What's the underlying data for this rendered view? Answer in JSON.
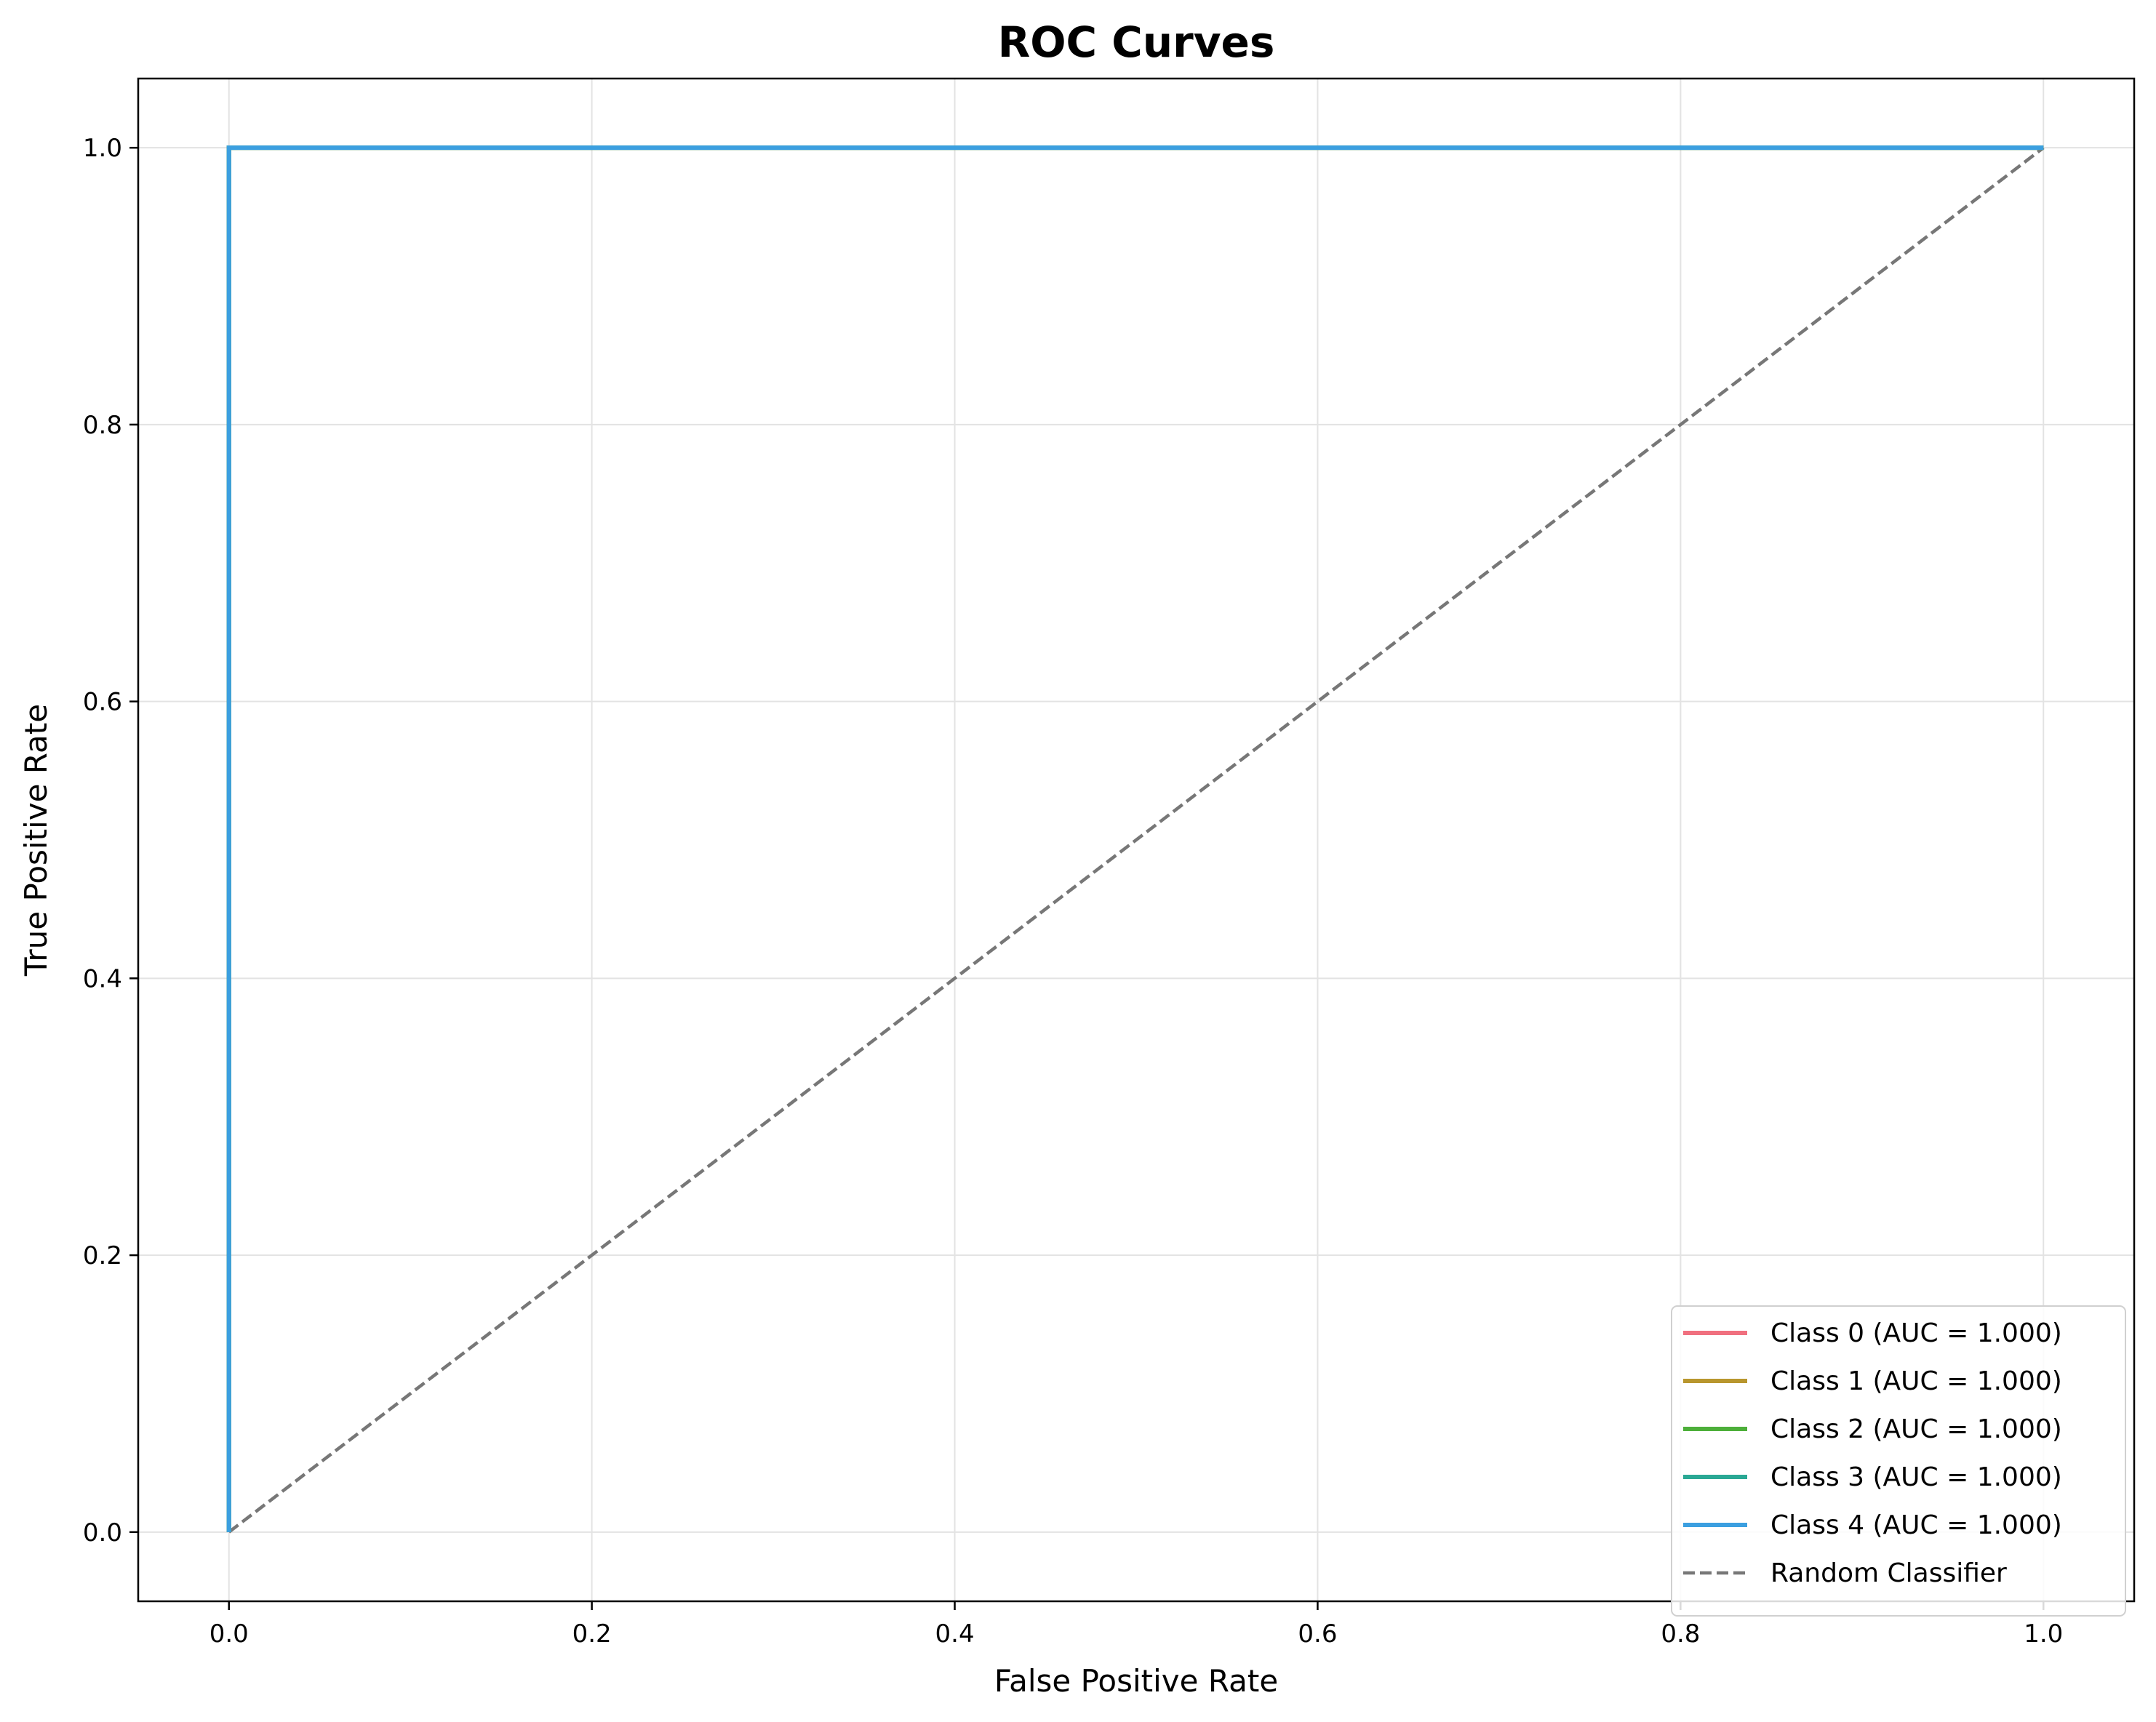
{
  "chart_data": {
    "type": "line",
    "title": "ROC Curves",
    "xlabel": "False Positive Rate",
    "ylabel": "True Positive Rate",
    "xlim": [
      -0.05,
      1.05
    ],
    "ylim": [
      -0.05,
      1.05
    ],
    "xticks": [
      "0.0",
      "0.2",
      "0.4",
      "0.6",
      "0.8",
      "1.0"
    ],
    "yticks": [
      "0.0",
      "0.2",
      "0.4",
      "0.6",
      "0.8",
      "1.0"
    ],
    "grid": true,
    "legend_position": "lower-right",
    "series": [
      {
        "name": "Class 0 (AUC = 1.000)",
        "color": "#f0707f",
        "dash": false,
        "x": [
          0,
          0,
          1
        ],
        "y": [
          0,
          1,
          1
        ]
      },
      {
        "name": "Class 1 (AUC = 1.000)",
        "color": "#b8962e",
        "dash": false,
        "x": [
          0,
          0,
          1
        ],
        "y": [
          0,
          1,
          1
        ]
      },
      {
        "name": "Class 2 (AUC = 1.000)",
        "color": "#4daf3a",
        "dash": false,
        "x": [
          0,
          0,
          1
        ],
        "y": [
          0,
          1,
          1
        ]
      },
      {
        "name": "Class 3 (AUC = 1.000)",
        "color": "#2aa894",
        "dash": false,
        "x": [
          0,
          0,
          1
        ],
        "y": [
          0,
          1,
          1
        ]
      },
      {
        "name": "Class 4 (AUC = 1.000)",
        "color": "#3b9fe0",
        "dash": false,
        "x": [
          0,
          0,
          1
        ],
        "y": [
          0,
          1,
          1
        ]
      },
      {
        "name": "Random Classifier",
        "color": "#777777",
        "dash": true,
        "x": [
          0,
          1
        ],
        "y": [
          0,
          1
        ]
      }
    ]
  }
}
